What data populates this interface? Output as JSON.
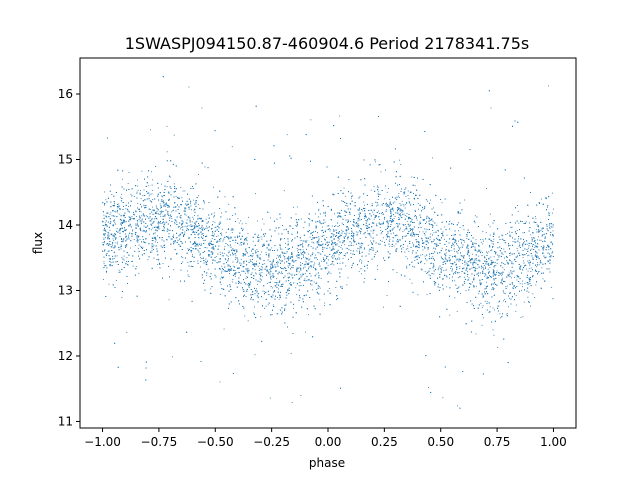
{
  "chart_data": {
    "type": "scatter",
    "title": "1SWASPJ094150.87-460904.6 Period 2178341.75s",
    "xlabel": "phase",
    "ylabel": "flux",
    "xlim": [
      -1.1,
      1.1
    ],
    "ylim": [
      10.9,
      16.55
    ],
    "xticks": [
      -1.0,
      -0.75,
      -0.5,
      -0.25,
      0.0,
      0.25,
      0.5,
      0.75,
      1.0
    ],
    "xtick_labels": [
      "−1.00",
      "−0.75",
      "−0.50",
      "−0.25",
      "0.00",
      "0.25",
      "0.50",
      "0.75",
      "1.00"
    ],
    "yticks": [
      11,
      12,
      13,
      14,
      15,
      16
    ],
    "ytick_labels": [
      "11",
      "12",
      "13",
      "14",
      "15",
      "16"
    ],
    "grid": false,
    "point_color": "#1f77b4",
    "series": [
      {
        "x_range": [
          -1.0,
          1.0
        ],
        "mean_curve": {
          "phase": [
            -1.0,
            -0.9,
            -0.8,
            -0.7,
            -0.6,
            -0.5,
            -0.4,
            -0.3,
            -0.2,
            -0.1,
            0.0,
            0.1,
            0.2,
            0.3,
            0.4,
            0.5,
            0.6,
            0.7,
            0.8,
            0.9,
            1.0
          ],
          "flux": [
            13.8,
            13.9,
            14.05,
            14.15,
            13.95,
            13.6,
            13.45,
            13.3,
            13.35,
            13.45,
            13.7,
            13.85,
            14.0,
            14.15,
            13.85,
            13.6,
            13.5,
            13.3,
            13.35,
            13.55,
            13.8
          ]
        },
        "scatter_sigma": 0.35,
        "range_min": 11.2,
        "range_max": 16.3
      }
    ]
  }
}
